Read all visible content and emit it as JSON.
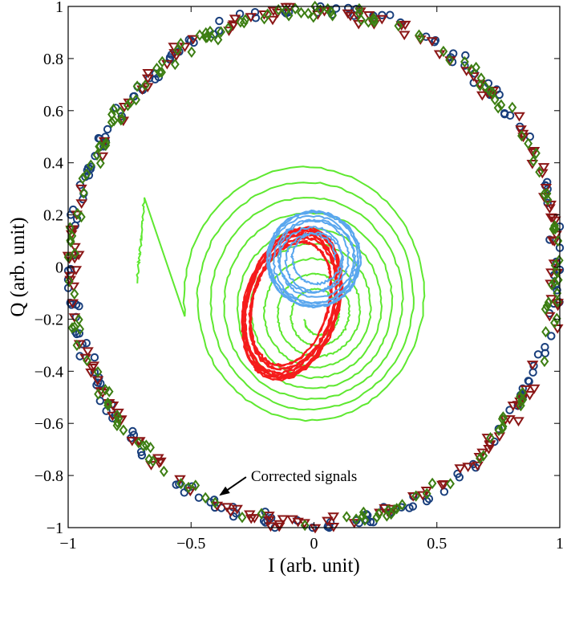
{
  "chart_data": {
    "type": "scatter",
    "title": "",
    "xlabel": "I (arb. unit)",
    "ylabel": "Q (arb. unit)",
    "xlim": [
      -1,
      1
    ],
    "ylim": [
      -1,
      1
    ],
    "xticks": [
      -1,
      -0.5,
      0,
      0.5,
      1
    ],
    "yticks": [
      -1,
      -0.8,
      -0.6,
      -0.4,
      -0.2,
      0,
      0.2,
      0.4,
      0.6,
      0.8,
      1
    ],
    "xtick_labels": [
      "−1",
      "−0.5",
      "0",
      "0.5",
      "1"
    ],
    "ytick_labels": [
      "−1",
      "−0.8",
      "−0.6",
      "−0.4",
      "−0.2",
      "0",
      "0.2",
      "0.4",
      "0.6",
      "0.8",
      "1"
    ],
    "grid": false,
    "annotation": {
      "text": "Corrected signals",
      "points_to": [
        -0.4,
        -0.88
      ],
      "text_at": [
        -0.25,
        -0.8
      ]
    },
    "series": [
      {
        "name": "raw-signal-green",
        "kind": "line",
        "color": "#5ee830",
        "description": "outward spiral trajectory",
        "center": [
          0.02,
          -0.19
        ],
        "start_point": [
          -0.72,
          -0.06
        ],
        "radius_range": [
          0.06,
          0.5
        ],
        "turns": 9
      },
      {
        "name": "raw-signal-red",
        "kind": "line",
        "color": "#f51b1b",
        "description": "tilted elliptical loops",
        "center": [
          -0.09,
          -0.14
        ],
        "semi_axes": [
          0.19,
          0.3
        ],
        "tilt_deg": -18,
        "turns": 14
      },
      {
        "name": "raw-signal-blue",
        "kind": "line",
        "color": "#5aa7ee",
        "description": "small spiral loops",
        "center": [
          0.0,
          0.03
        ],
        "radius_range": [
          0.03,
          0.2
        ],
        "turns": 9
      },
      {
        "name": "corrected-circles",
        "kind": "scatter",
        "marker": "circle",
        "color": "#183e7c",
        "radius": 0.99,
        "count": 190
      },
      {
        "name": "corrected-triangles",
        "kind": "scatter",
        "marker": "triangle-down",
        "color": "#8b1616",
        "radius": 0.985,
        "count": 170
      },
      {
        "name": "corrected-diamonds",
        "kind": "scatter",
        "marker": "diamond",
        "color": "#3c7e12",
        "radius": 0.985,
        "count": 180
      }
    ]
  }
}
